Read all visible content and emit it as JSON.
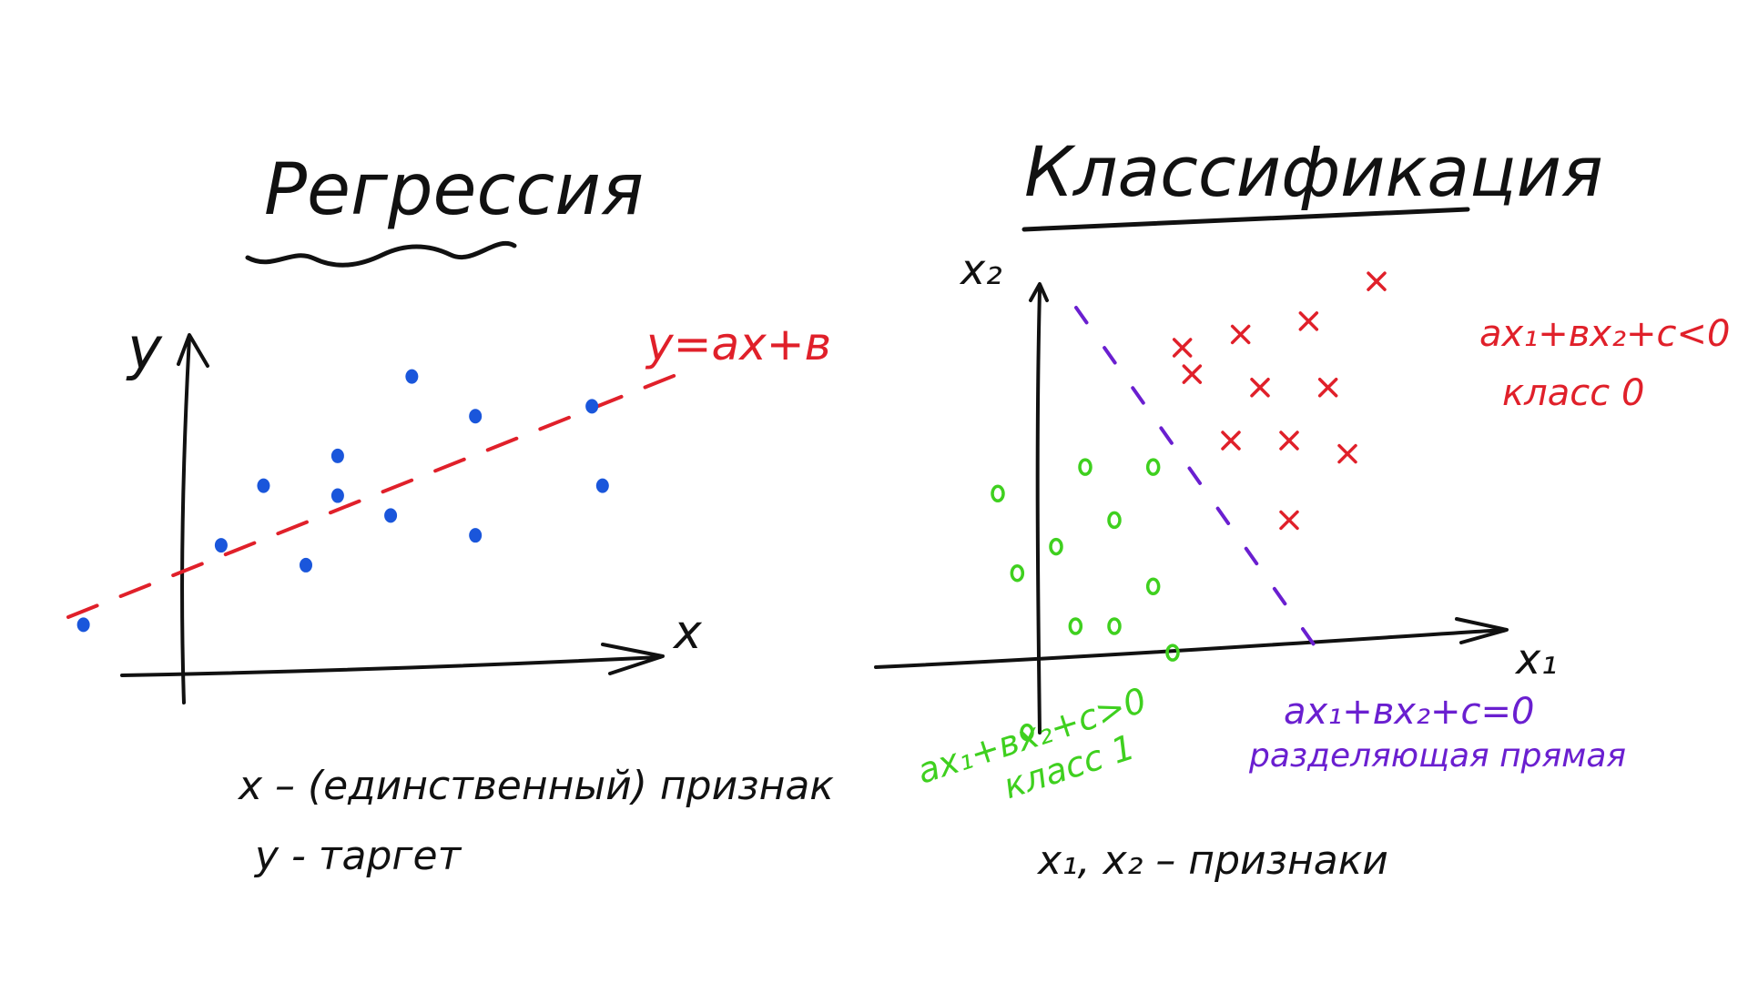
{
  "colors": {
    "ink": "#111111",
    "blue_points": "#1a56db",
    "red": "#e0202a",
    "green": "#3fd01f",
    "purple": "#6a1fd0"
  },
  "regression": {
    "title": "Регрессия",
    "y_axis_label": "y",
    "x_axis_label": "x",
    "line_label": "y=ax+в",
    "note_line1": "x – (единственный) признак",
    "note_line2": "y - таргет"
  },
  "classification": {
    "title": "Классификация",
    "x2_axis_label": "x₂",
    "x1_axis_label": "x₁",
    "class0_rule": "ax₁+вx₂+c<0",
    "class0_label": "класс 0",
    "class1_rule": "ax₁+вx₂+c>0",
    "class1_label": "класс 1",
    "boundary_rule": "ax₁+вx₂+c=0",
    "boundary_label": "разделяющая прямая",
    "note": "x₁, x₂ – признаки",
    "class0_marker": "×",
    "class1_marker": "o"
  },
  "chart_data": [
    {
      "type": "scatter",
      "title": "Регрессия",
      "xlabel": "x",
      "ylabel": "y",
      "xlim": [
        -1.0,
        4.5
      ],
      "ylim": [
        -0.3,
        3.0
      ],
      "grid": false,
      "series": [
        {
          "name": "",
          "color": "#1a56db",
          "points": [
            {
              "x": -0.9,
              "y": 0.1
            },
            {
              "x": 0.4,
              "y": 0.9
            },
            {
              "x": 1.2,
              "y": 0.7
            },
            {
              "x": 0.8,
              "y": 1.5
            },
            {
              "x": 1.5,
              "y": 1.8
            },
            {
              "x": 1.5,
              "y": 1.4
            },
            {
              "x": 2.0,
              "y": 1.2
            },
            {
              "x": 2.2,
              "y": 2.6
            },
            {
              "x": 2.8,
              "y": 2.2
            },
            {
              "x": 2.8,
              "y": 1.0
            },
            {
              "x": 3.9,
              "y": 2.3
            },
            {
              "x": 4.0,
              "y": 1.5
            }
          ]
        }
      ],
      "fit_line": {
        "label": "y=ax+в",
        "slope": 0.45,
        "intercept": 0.65,
        "style": "dashed",
        "color": "#e0202a"
      }
    },
    {
      "type": "scatter",
      "title": "Классификация",
      "xlabel": "x₁",
      "ylabel": "x₂",
      "xlim": [
        -1.5,
        4.5
      ],
      "ylim": [
        -0.3,
        3.2
      ],
      "grid": false,
      "series": [
        {
          "name": "класс 0",
          "marker": "×",
          "color": "#e0202a",
          "points": [
            {
              "x": 1.3,
              "y": 2.5
            },
            {
              "x": 1.9,
              "y": 2.6
            },
            {
              "x": 2.6,
              "y": 2.7
            },
            {
              "x": 3.3,
              "y": 3.0
            },
            {
              "x": 1.4,
              "y": 2.3
            },
            {
              "x": 2.1,
              "y": 2.2
            },
            {
              "x": 2.8,
              "y": 2.2
            },
            {
              "x": 1.8,
              "y": 1.8
            },
            {
              "x": 2.4,
              "y": 1.8
            },
            {
              "x": 3.0,
              "y": 1.7
            },
            {
              "x": 2.4,
              "y": 1.2
            }
          ]
        },
        {
          "name": "класс 1",
          "marker": "o",
          "color": "#3fd01f",
          "points": [
            {
              "x": -0.6,
              "y": 1.4
            },
            {
              "x": 0.3,
              "y": 1.6
            },
            {
              "x": 1.0,
              "y": 1.6
            },
            {
              "x": 0.0,
              "y": 1.0
            },
            {
              "x": 0.6,
              "y": 1.2
            },
            {
              "x": -0.4,
              "y": 0.8
            },
            {
              "x": 1.0,
              "y": 0.7
            },
            {
              "x": 0.2,
              "y": 0.4
            },
            {
              "x": 0.6,
              "y": 0.4
            },
            {
              "x": 1.2,
              "y": 0.2
            },
            {
              "x": -0.3,
              "y": -0.4
            }
          ]
        }
      ],
      "decision_boundary": {
        "label": "ax₁+вx₂+c=0",
        "style": "dashed",
        "color": "#6a1fd0",
        "from": {
          "x": 0.3,
          "y": 3.0
        },
        "to": {
          "x": 2.3,
          "y": -0.2
        }
      }
    }
  ]
}
